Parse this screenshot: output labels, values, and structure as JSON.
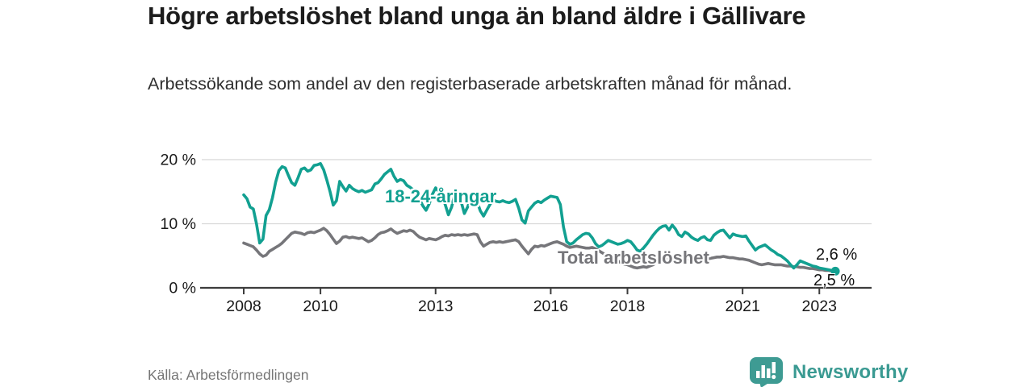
{
  "header": {
    "title": "Högre arbetslöshet bland unga än bland äldre i Gällivare",
    "subtitle": "Arbetssökande som andel av den registerbaserade arbetskraften månad för månad."
  },
  "footer": {
    "source": "Källa: Arbetsförmedlingen",
    "brand": "Newsworthy",
    "brand_color": "#3a9a92",
    "logo_icon": "speech-bubble-bar-chart"
  },
  "chart_data": {
    "type": "line",
    "title": "Högre arbetslöshet bland unga än bland äldre i Gällivare",
    "subtitle": "Arbetssökande som andel av den registerbaserade arbetskraften månad för månad.",
    "xlabel": "",
    "ylabel": "",
    "x_start": 2008.0,
    "x_step_months": 1,
    "x_end": 2023.42,
    "ylim": [
      0,
      21
    ],
    "grid": true,
    "legend_position": "inline-labels",
    "yticks": [
      {
        "value": 0,
        "label": "0 %"
      },
      {
        "value": 10,
        "label": "10 %"
      },
      {
        "value": 20,
        "label": "20 %"
      }
    ],
    "xticks": [
      {
        "value": 2008,
        "label": "2008"
      },
      {
        "value": 2010,
        "label": "2010"
      },
      {
        "value": 2013,
        "label": "2013"
      },
      {
        "value": 2016,
        "label": "2016"
      },
      {
        "value": 2018,
        "label": "2018"
      },
      {
        "value": 2021,
        "label": "2021"
      },
      {
        "value": 2023,
        "label": "2023"
      }
    ],
    "series": [
      {
        "name": "18-24-åringar",
        "color": "#12a091",
        "end_label": "2,6 %",
        "end_value": 2.6,
        "values": [
          14.5,
          13.9,
          12.6,
          12.3,
          10.0,
          7.0,
          7.6,
          11.3,
          12.2,
          14.1,
          16.5,
          18.3,
          18.9,
          18.7,
          17.5,
          16.4,
          16.0,
          17.2,
          18.5,
          18.7,
          18.2,
          18.4,
          19.1,
          19.2,
          19.4,
          18.4,
          16.8,
          15.0,
          12.9,
          13.6,
          16.6,
          15.8,
          15.1,
          16.0,
          15.5,
          15.2,
          15.0,
          15.2,
          14.9,
          15.1,
          15.3,
          16.2,
          16.4,
          17.0,
          17.7,
          18.1,
          18.5,
          17.4,
          16.6,
          16.9,
          16.7,
          16.0,
          15.7,
          15.3,
          14.7,
          13.8,
          12.8,
          12.1,
          13.1,
          14.6,
          15.6,
          15.0,
          14.2,
          13.0,
          11.4,
          12.6,
          14.6,
          14.8,
          13.4,
          11.6,
          12.6,
          13.9,
          14.3,
          13.4,
          12.0,
          11.2,
          12.1,
          13.0,
          13.7,
          13.5,
          13.4,
          13.6,
          13.4,
          13.3,
          13.5,
          13.8,
          12.4,
          10.6,
          10.1,
          12.0,
          12.6,
          13.2,
          13.5,
          13.3,
          13.7,
          14.0,
          14.3,
          14.2,
          14.1,
          13.0,
          9.5,
          7.2,
          6.8,
          7.0,
          7.5,
          7.9,
          8.3,
          8.5,
          8.4,
          7.8,
          6.9,
          6.4,
          6.6,
          7.0,
          7.4,
          7.2,
          7.0,
          6.8,
          6.9,
          7.1,
          7.4,
          7.2,
          6.6,
          5.9,
          5.7,
          6.2,
          6.8,
          7.5,
          8.2,
          8.8,
          9.3,
          9.6,
          9.7,
          9.0,
          9.8,
          9.2,
          8.3,
          8.0,
          8.7,
          8.4,
          7.9,
          7.6,
          7.4,
          7.8,
          8.0,
          7.5,
          7.4,
          8.2,
          8.6,
          8.9,
          9.0,
          8.4,
          7.8,
          8.4,
          8.2,
          8.1,
          8.0,
          8.1,
          7.3,
          6.6,
          5.9,
          6.3,
          6.5,
          6.7,
          6.3,
          5.9,
          5.6,
          5.2,
          5.0,
          4.6,
          4.2,
          3.6,
          3.1,
          3.6,
          4.2,
          4.0,
          3.8,
          3.6,
          3.4,
          3.3,
          3.1,
          3.0,
          2.9,
          2.8,
          2.7,
          2.6
        ]
      },
      {
        "name": "Total arbetslöshet",
        "color": "#76767a",
        "end_label": "2,5 %",
        "end_value": 2.5,
        "values": [
          7.0,
          6.8,
          6.6,
          6.4,
          5.9,
          5.3,
          4.9,
          5.1,
          5.7,
          6.0,
          6.3,
          6.6,
          7.0,
          7.5,
          8.0,
          8.5,
          8.7,
          8.6,
          8.5,
          8.3,
          8.6,
          8.7,
          8.6,
          8.8,
          9.0,
          9.3,
          8.9,
          8.3,
          7.6,
          6.9,
          7.3,
          7.9,
          8.0,
          7.8,
          7.9,
          7.8,
          7.7,
          7.8,
          7.5,
          7.2,
          7.4,
          7.8,
          8.3,
          8.6,
          8.7,
          8.9,
          9.2,
          8.8,
          8.5,
          8.7,
          8.9,
          8.8,
          9.0,
          8.8,
          8.3,
          7.9,
          7.7,
          7.5,
          7.7,
          7.6,
          7.5,
          7.7,
          8.0,
          8.2,
          8.1,
          8.3,
          8.2,
          8.3,
          8.2,
          8.3,
          8.2,
          8.3,
          8.4,
          8.3,
          7.2,
          6.5,
          6.8,
          7.1,
          7.2,
          7.1,
          7.2,
          7.1,
          7.2,
          7.3,
          7.4,
          7.5,
          7.2,
          6.5,
          5.9,
          5.3,
          6.0,
          6.5,
          6.4,
          6.6,
          6.5,
          6.7,
          6.9,
          7.1,
          7.2,
          7.0,
          6.8,
          6.5,
          6.3,
          6.4,
          6.5,
          6.4,
          6.3,
          6.2,
          6.2,
          6.3,
          6.1,
          5.8,
          5.5,
          5.2,
          5.0,
          4.8,
          4.5,
          4.2,
          3.9,
          3.7,
          3.6,
          3.4,
          3.2,
          3.1,
          3.2,
          3.3,
          3.2,
          3.4,
          3.6,
          3.9,
          4.1,
          4.3,
          4.4,
          4.5,
          4.4,
          4.5,
          4.4,
          4.5,
          4.6,
          4.5,
          4.6,
          4.5,
          4.6,
          4.6,
          4.6,
          4.5,
          4.6,
          4.7,
          4.8,
          4.8,
          4.9,
          4.8,
          4.7,
          4.7,
          4.6,
          4.5,
          4.5,
          4.4,
          4.3,
          4.1,
          3.9,
          3.7,
          3.6,
          3.7,
          3.8,
          3.7,
          3.6,
          3.6,
          3.6,
          3.5,
          3.4,
          3.4,
          3.3,
          3.3,
          3.2,
          3.2,
          3.1,
          3.0,
          3.0,
          2.9,
          2.8,
          2.8,
          2.7,
          2.7,
          2.6,
          2.5
        ]
      }
    ]
  }
}
